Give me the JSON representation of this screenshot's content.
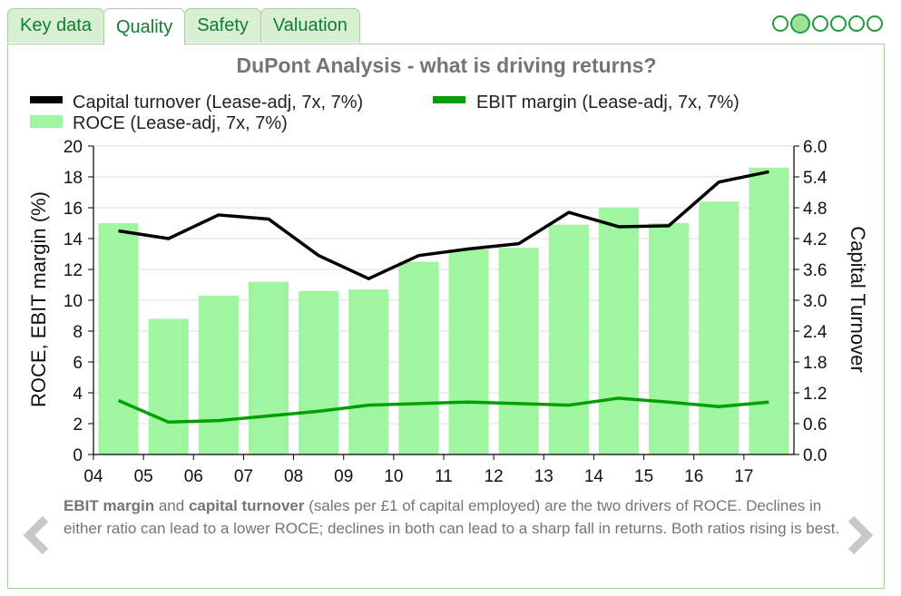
{
  "tabs": [
    {
      "label": "Key data",
      "active": false
    },
    {
      "label": "Quality",
      "active": true
    },
    {
      "label": "Safety",
      "active": false
    },
    {
      "label": "Valuation",
      "active": false
    }
  ],
  "pager": {
    "count": 6,
    "active_index": 1
  },
  "caption": {
    "bold1": "EBIT margin",
    "text1": " and ",
    "bold2": "capital turnover",
    "text2": " (sales per £1 of capital employed) are the two drivers of ROCE. Declines in either ratio can lead to a lower ROCE; declines in both can lead to a sharp fall in returns. Both ratios rising is best."
  },
  "chart_data": {
    "type": "bar",
    "title": "DuPont Analysis - what is driving returns?",
    "categories": [
      "04",
      "05",
      "06",
      "07",
      "08",
      "09",
      "10",
      "11",
      "12",
      "13",
      "14",
      "15",
      "16",
      "17"
    ],
    "x_ticks": [
      "04",
      "05",
      "06",
      "07",
      "08",
      "09",
      "10",
      "11",
      "12",
      "13",
      "14",
      "15",
      "16",
      "17"
    ],
    "ylabel": "ROCE, EBIT margin (%)",
    "y2label": "Capital Turnover",
    "ylim": [
      0,
      20
    ],
    "y_ticks": [
      "0",
      "2",
      "4",
      "6",
      "8",
      "10",
      "12",
      "14",
      "16",
      "18",
      "20"
    ],
    "y2lim": [
      0,
      6
    ],
    "y2_ticks": [
      "0.0",
      "0.6",
      "1.2",
      "1.8",
      "2.4",
      "3.0",
      "3.6",
      "4.2",
      "4.8",
      "5.4",
      "6.0"
    ],
    "grid": true,
    "legend_position": "top",
    "series": [
      {
        "name": "ROCE (Lease-adj, 7x, 7%)",
        "kind": "bar",
        "axis": "left",
        "color": "#a0f5a0",
        "values": [
          15.0,
          8.8,
          10.3,
          11.2,
          10.6,
          10.7,
          12.5,
          13.3,
          13.4,
          14.9,
          16.0,
          15.0,
          16.4,
          18.6
        ]
      },
      {
        "name": "Capital turnover (Lease-adj, 7x, 7%)",
        "kind": "line",
        "axis": "right",
        "color": "#000000",
        "values": [
          4.35,
          4.2,
          4.66,
          4.58,
          3.87,
          3.42,
          3.87,
          4.0,
          4.1,
          4.71,
          4.43,
          4.45,
          5.3,
          5.5
        ]
      },
      {
        "name": "EBIT margin (Lease-adj, 7x, 7%)",
        "kind": "line",
        "axis": "left",
        "color": "#00a000",
        "values": [
          3.5,
          2.1,
          2.2,
          2.5,
          2.8,
          3.2,
          3.3,
          3.4,
          3.3,
          3.2,
          3.65,
          3.4,
          3.1,
          3.4
        ]
      }
    ]
  }
}
